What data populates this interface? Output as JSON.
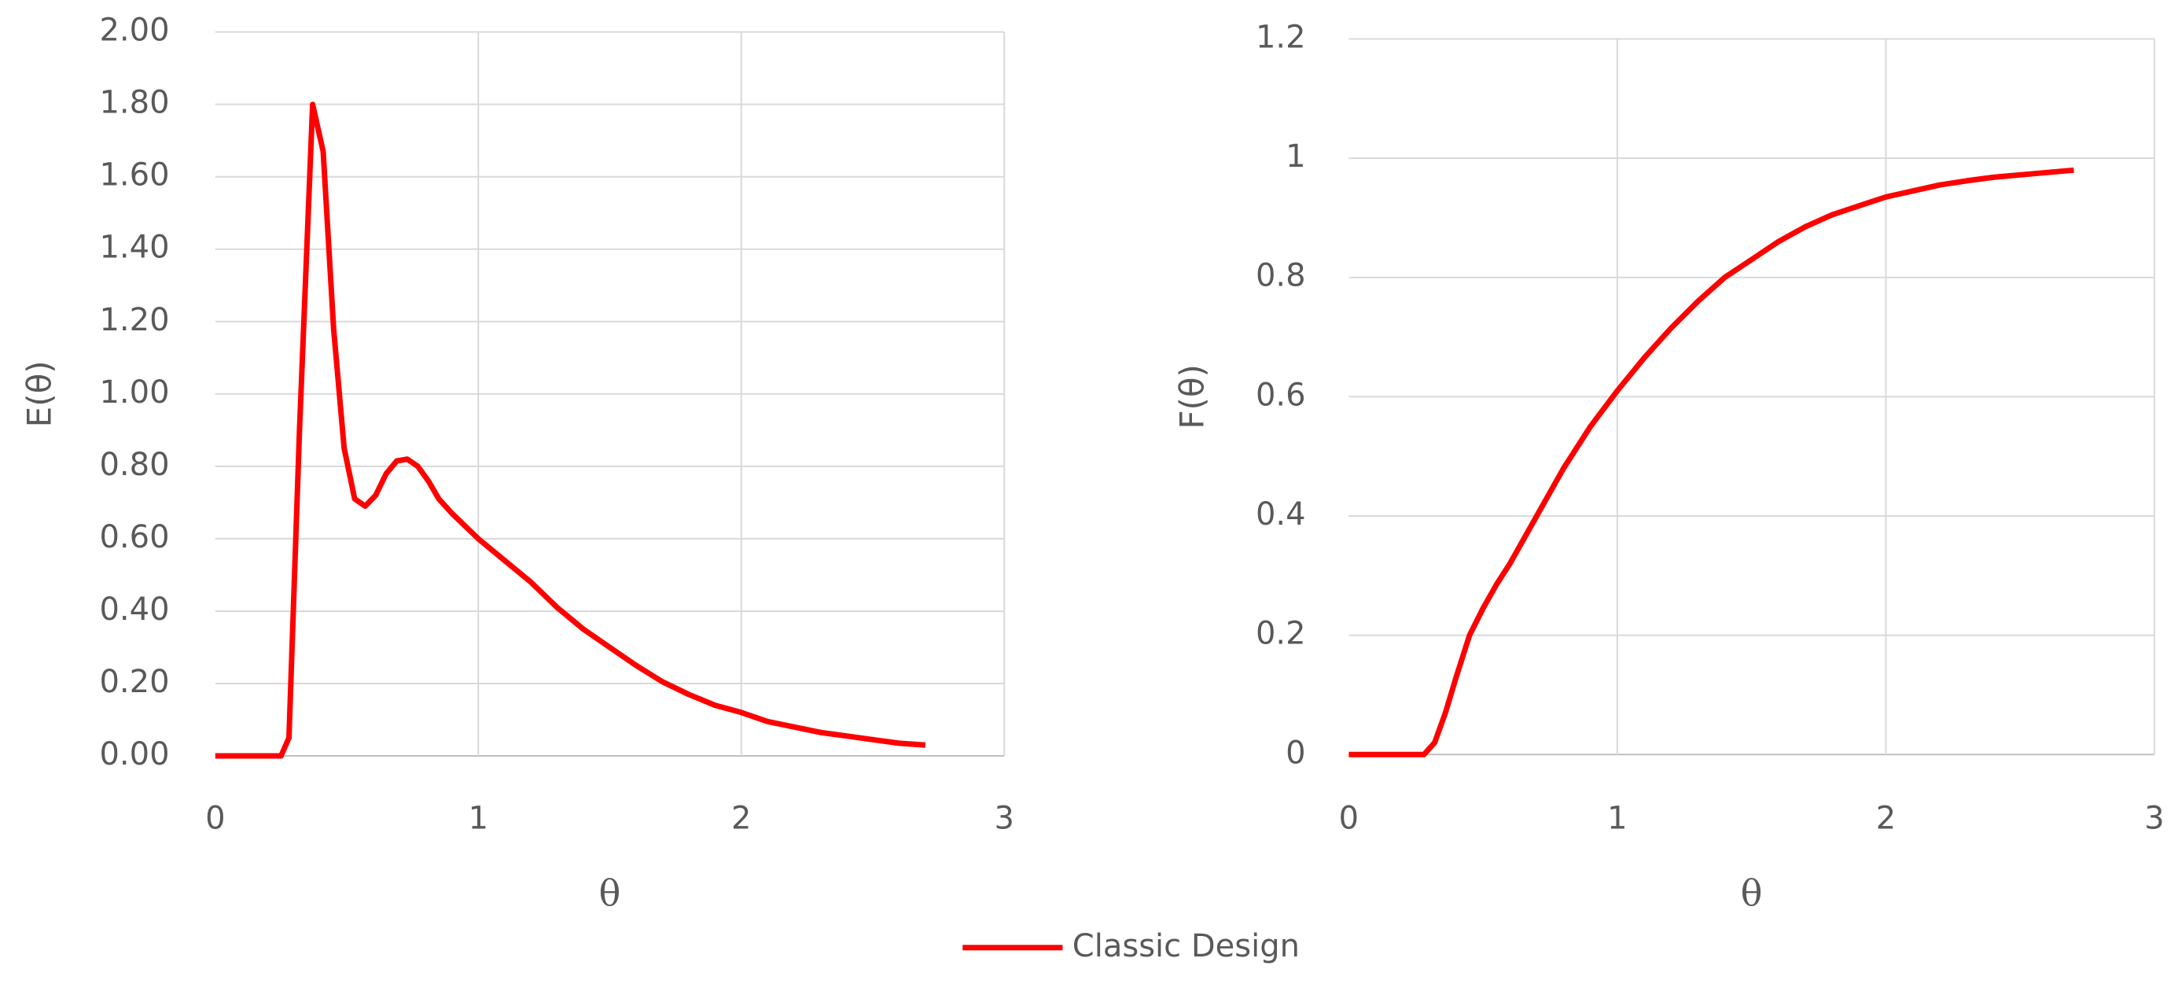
{
  "chart_data": [
    {
      "type": "line",
      "y_label": "E(θ)",
      "x_label": "θ",
      "x": [
        0,
        0.1,
        0.2,
        0.25,
        0.28,
        0.32,
        0.37,
        0.41,
        0.45,
        0.49,
        0.53,
        0.57,
        0.61,
        0.65,
        0.69,
        0.73,
        0.77,
        0.81,
        0.85,
        0.9,
        1,
        1.1,
        1.2,
        1.3,
        1.4,
        1.5,
        1.6,
        1.7,
        1.8,
        1.9,
        2,
        2.1,
        2.2,
        2.3,
        2.4,
        2.5,
        2.6,
        2.7
      ],
      "series": [
        {
          "name": "Classic Design",
          "color": "#ff0000",
          "values": [
            0,
            0,
            0,
            0,
            0.05,
            0.9,
            1.8,
            1.67,
            1.18,
            0.85,
            0.71,
            0.69,
            0.72,
            0.78,
            0.815,
            0.82,
            0.8,
            0.76,
            0.71,
            0.67,
            0.6,
            0.54,
            0.48,
            0.41,
            0.35,
            0.3,
            0.25,
            0.205,
            0.17,
            0.14,
            0.12,
            0.095,
            0.08,
            0.065,
            0.055,
            0.045,
            0.035,
            0.03
          ]
        }
      ],
      "xlim": [
        0,
        3
      ],
      "xticks": [
        0,
        1,
        2,
        3
      ],
      "ylim": [
        0,
        2
      ],
      "yticks": [
        {
          "value": 0,
          "label": "0.00"
        },
        {
          "value": 0.2,
          "label": "0.20"
        },
        {
          "value": 0.4,
          "label": "0.40"
        },
        {
          "value": 0.6,
          "label": "0.60"
        },
        {
          "value": 0.8,
          "label": "0.80"
        },
        {
          "value": 1,
          "label": "1.00"
        },
        {
          "value": 1.2,
          "label": "1.20"
        },
        {
          "value": 1.4,
          "label": "1.40"
        },
        {
          "value": 1.6,
          "label": "1.60"
        },
        {
          "value": 1.8,
          "label": "1.80"
        },
        {
          "value": 2,
          "label": "2.00"
        }
      ],
      "grid": true
    },
    {
      "type": "line",
      "y_label": "F(θ)",
      "x_label": "θ",
      "x": [
        0,
        0.1,
        0.2,
        0.28,
        0.32,
        0.36,
        0.4,
        0.45,
        0.5,
        0.55,
        0.6,
        0.7,
        0.8,
        0.9,
        1,
        1.1,
        1.2,
        1.3,
        1.4,
        1.5,
        1.6,
        1.7,
        1.8,
        1.9,
        2,
        2.1,
        2.2,
        2.3,
        2.4,
        2.5,
        2.6,
        2.7
      ],
      "series": [
        {
          "color": "#ff0000",
          "values": [
            0,
            0,
            0,
            0,
            0.02,
            0.07,
            0.13,
            0.2,
            0.245,
            0.285,
            0.32,
            0.4,
            0.48,
            0.55,
            0.61,
            0.665,
            0.715,
            0.76,
            0.8,
            0.83,
            0.86,
            0.885,
            0.905,
            0.92,
            0.935,
            0.945,
            0.955,
            0.962,
            0.968,
            0.972,
            0.976,
            0.98
          ]
        }
      ],
      "xlim": [
        0,
        3
      ],
      "xticks": [
        0,
        1,
        2,
        3
      ],
      "ylim": [
        0,
        1.2
      ],
      "yticks": [
        0,
        0.2,
        0.4,
        0.6,
        0.8,
        1,
        1.2
      ],
      "grid": true
    }
  ]
}
